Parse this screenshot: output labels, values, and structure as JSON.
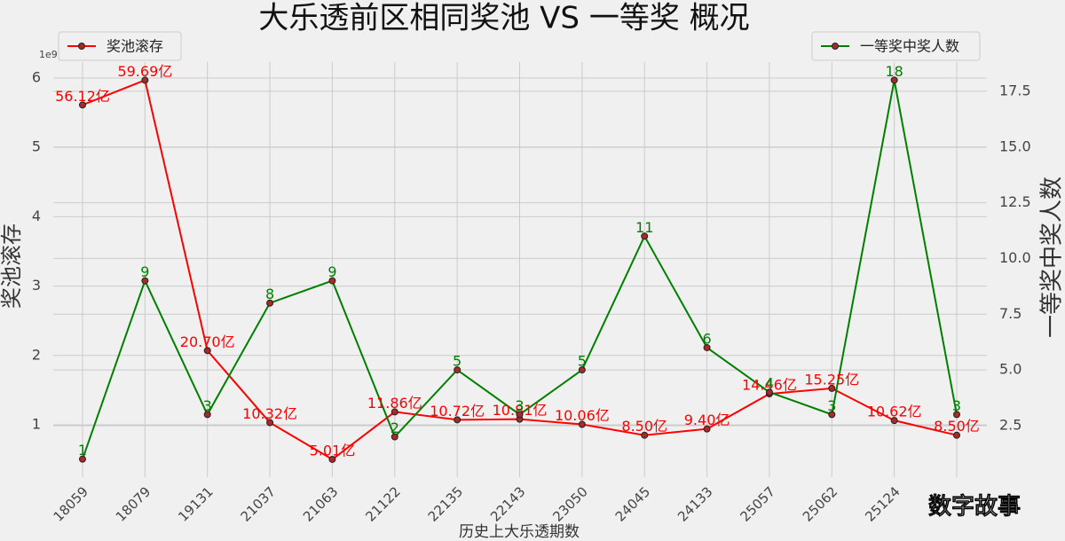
{
  "chart_data": {
    "type": "line",
    "title": "大乐透前区相同奖池 VS 一等奖 概况",
    "xlabel": "历史上大乐透期数",
    "ylabel": "奖池滚存",
    "y2label": "一等奖中奖人数",
    "y_offset_label": "1e9",
    "watermark": "数字故事",
    "categories": [
      "18059",
      "18079",
      "19131",
      "21037",
      "21063",
      "21122",
      "22135",
      "22143",
      "23050",
      "24045",
      "24133",
      "25057",
      "25062",
      "25124",
      null
    ],
    "series": [
      {
        "name": "奖池滚存",
        "color": "#ff0000",
        "axis": "y",
        "legend": "upper left",
        "values": [
          5.612,
          5.969,
          2.07,
          1.032,
          0.501,
          1.186,
          1.072,
          1.081,
          1.006,
          0.85,
          0.94,
          1.446,
          1.525,
          1.062,
          0.85
        ],
        "value_labels": [
          "56.12亿",
          "59.69亿",
          "20.70亿",
          "10.32亿",
          "5.01亿",
          "11.86亿",
          "10.72亿",
          "10.81亿",
          "10.06亿",
          "8.50亿",
          "9.40亿",
          "14.46亿",
          "15.25亿",
          "10.62亿",
          "8.50亿"
        ]
      },
      {
        "name": "一等奖中奖人数",
        "color": "#008000",
        "axis": "y2",
        "legend": "upper right",
        "values": [
          1,
          9,
          3,
          8,
          9,
          2,
          5,
          3,
          5,
          11,
          6,
          4,
          3,
          18,
          3
        ]
      }
    ],
    "marker_color": "#a52a2a",
    "ylim": [
      0.245,
      6.23
    ],
    "yticks": [
      1,
      2,
      3,
      4,
      5,
      6
    ],
    "y2lim": [
      0.19,
      18.81
    ],
    "y2ticks": [
      {
        "value": 2.5,
        "label": "2.5"
      },
      {
        "value": 5,
        "label": "5.0"
      },
      {
        "value": 7.5,
        "label": "7.5"
      },
      {
        "value": 10,
        "label": "10.0"
      },
      {
        "value": 12.5,
        "label": "12.5"
      },
      {
        "value": 15,
        "label": "15.0"
      },
      {
        "value": 17.5,
        "label": "17.5"
      }
    ],
    "grid": true
  }
}
